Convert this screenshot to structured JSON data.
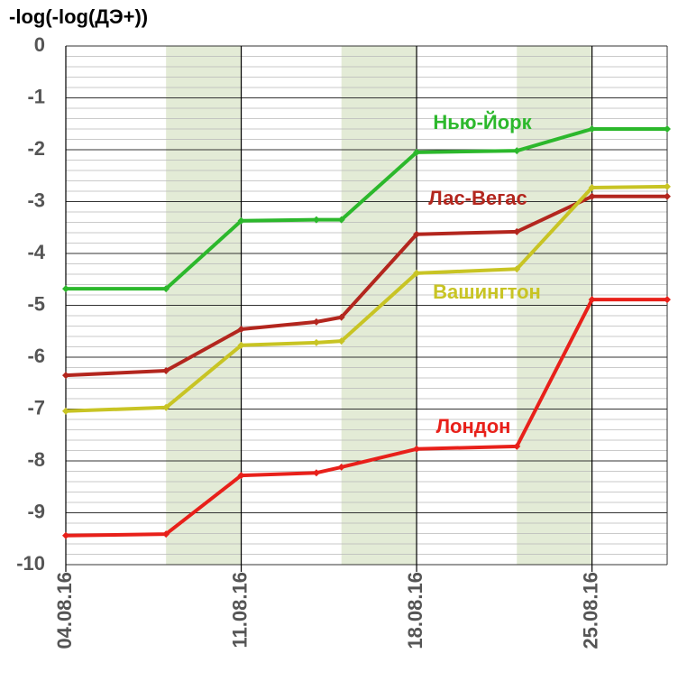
{
  "chart_data": {
    "type": "line",
    "title": "-log(-log(ДЭ+))",
    "x": [
      "2016-08-04",
      "2016-08-08",
      "2016-08-11",
      "2016-08-14",
      "2016-08-15",
      "2016-08-18",
      "2016-08-22",
      "2016-08-25",
      "2016-08-28"
    ],
    "series": [
      {
        "name": "Нью-Йорк",
        "color": "#2cb82c",
        "values": [
          -4.68,
          -4.68,
          -3.37,
          -3.35,
          -3.35,
          -2.05,
          -2.02,
          -1.6,
          -1.6
        ]
      },
      {
        "name": "Лас-Вегас",
        "color": "#b3261e",
        "values": [
          -6.35,
          -6.26,
          -5.46,
          -5.32,
          -5.23,
          -3.63,
          -3.58,
          -2.9,
          -2.9
        ]
      },
      {
        "name": "Вашингтон",
        "color": "#c8c424",
        "values": [
          -7.04,
          -6.97,
          -5.77,
          -5.72,
          -5.69,
          -4.38,
          -4.3,
          -2.73,
          -2.71
        ]
      },
      {
        "name": "Лондон",
        "color": "#e8201a",
        "values": [
          -9.44,
          -9.41,
          -8.28,
          -8.23,
          -8.12,
          -7.77,
          -7.72,
          -4.89,
          -4.89
        ]
      }
    ],
    "xlim": [
      "2016-08-04",
      "2016-08-28"
    ],
    "xticks": [
      {
        "value": "2016-08-04",
        "label": "04.08.16"
      },
      {
        "value": "2016-08-11",
        "label": "11.08.16"
      },
      {
        "value": "2016-08-18",
        "label": "18.08.16"
      },
      {
        "value": "2016-08-25",
        "label": "25.08.16"
      }
    ],
    "ylim": [
      -10,
      0
    ],
    "yticks": [
      0,
      -1,
      -2,
      -3,
      -4,
      -5,
      -6,
      -7,
      -8,
      -9,
      -10
    ],
    "minor_grid_step": 0.2,
    "shaded_x_ranges": [
      [
        "2016-08-08",
        "2016-08-11"
      ],
      [
        "2016-08-15",
        "2016-08-18"
      ],
      [
        "2016-08-22",
        "2016-08-25"
      ]
    ],
    "shade_color": "#e3ebd6",
    "grid": true
  }
}
